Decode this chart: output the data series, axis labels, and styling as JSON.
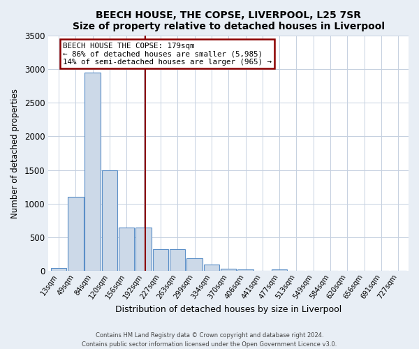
{
  "title": "BEECH HOUSE, THE COPSE, LIVERPOOL, L25 7SR",
  "subtitle": "Size of property relative to detached houses in Liverpool",
  "xlabel": "Distribution of detached houses by size in Liverpool",
  "ylabel": "Number of detached properties",
  "bin_labels": [
    "13sqm",
    "49sqm",
    "84sqm",
    "120sqm",
    "156sqm",
    "192sqm",
    "227sqm",
    "263sqm",
    "299sqm",
    "334sqm",
    "370sqm",
    "406sqm",
    "441sqm",
    "477sqm",
    "513sqm",
    "549sqm",
    "584sqm",
    "620sqm",
    "656sqm",
    "691sqm",
    "727sqm"
  ],
  "bar_heights": [
    50,
    1100,
    2950,
    1500,
    650,
    650,
    330,
    330,
    195,
    95,
    40,
    25,
    0,
    25,
    0,
    0,
    0,
    0,
    0,
    0,
    0
  ],
  "bar_color": "#ccd9e8",
  "bar_edge_color": "#5b8fc7",
  "vline_x": 5.1,
  "vline_color": "#8b0000",
  "annotation_title": "BEECH HOUSE THE COPSE: 179sqm",
  "annotation_line1": "← 86% of detached houses are smaller (5,985)",
  "annotation_line2": "14% of semi-detached houses are larger (965) →",
  "annotation_box_color": "#8b0000",
  "ylim": [
    0,
    3500
  ],
  "yticks": [
    0,
    500,
    1000,
    1500,
    2000,
    2500,
    3000,
    3500
  ],
  "footer1": "Contains HM Land Registry data © Crown copyright and database right 2024.",
  "footer2": "Contains public sector information licensed under the Open Government Licence v3.0.",
  "bg_color": "#e8eef5",
  "plot_bg_color": "#ffffff"
}
